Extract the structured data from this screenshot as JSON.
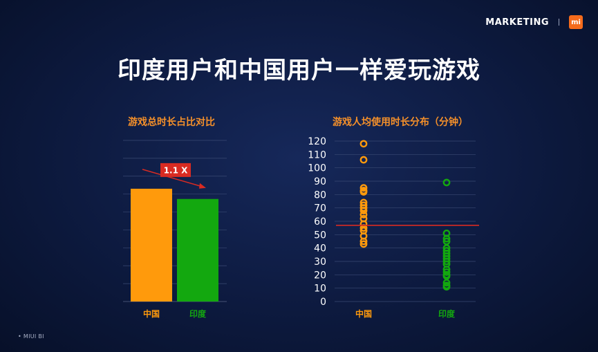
{
  "brand": {
    "marketing": "MARKETING",
    "logo": "mi"
  },
  "title": "印度用户和中国用户一样爱玩游戏",
  "footer": "MIUI BI",
  "colors": {
    "china": "#ff9a0c",
    "india": "#13a80f",
    "reference_line": "#d92b22",
    "annotation_bg": "#d92b22",
    "title_accent": "#f5902a"
  },
  "chart_data": [
    {
      "type": "bar",
      "title": "游戏总时长占比对比",
      "categories": [
        "中国",
        "印度"
      ],
      "values": [
        1.1,
        1.0
      ],
      "annotation": "1.1 X",
      "grid": true
    },
    {
      "type": "scatter",
      "title": "游戏人均使用时长分布（分钟）",
      "categories": [
        "中国",
        "印度"
      ],
      "ylim": [
        0,
        120
      ],
      "yticks": [
        "0",
        "10",
        "20",
        "30",
        "40",
        "50",
        "60",
        "70",
        "80",
        "90",
        "100",
        "110",
        "120"
      ],
      "reference_line": 57,
      "grid": true,
      "series": [
        {
          "category": "中国",
          "values": [
            118,
            106,
            85,
            83,
            82,
            74,
            72,
            70,
            68,
            65,
            62,
            58,
            55,
            53,
            49,
            45,
            43
          ]
        },
        {
          "category": "印度",
          "values": [
            89,
            51,
            47,
            45,
            40,
            38,
            36,
            34,
            32,
            30,
            28,
            24,
            22,
            20,
            19,
            14,
            12,
            11
          ]
        }
      ]
    }
  ]
}
